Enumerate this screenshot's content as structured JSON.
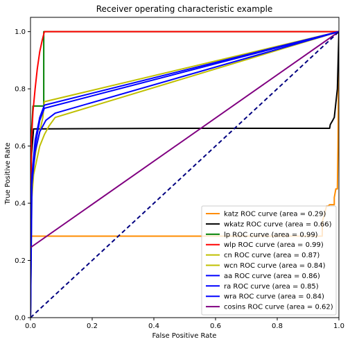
{
  "chart_data": {
    "type": "line",
    "title": "Receiver operating characteristic example",
    "xlabel": "False Positive Rate",
    "ylabel": "True Positive Rate",
    "xlim": [
      0.0,
      1.0
    ],
    "ylim": [
      0.0,
      1.05
    ],
    "xticks": [
      "0.0",
      "0.2",
      "0.4",
      "0.6",
      "0.8",
      "1.0"
    ],
    "yticks": [
      "0.0",
      "0.2",
      "0.4",
      "0.6",
      "0.8",
      "1.0"
    ],
    "grid": false,
    "legend_position": "lower-right",
    "series": [
      {
        "name": "katz ROC curve (area = 0.29)",
        "color": "#ff8c00",
        "points": [
          [
            0,
            0
          ],
          [
            0,
            0.285
          ],
          [
            0.6,
            0.285
          ],
          [
            0.946,
            0.285
          ],
          [
            0.946,
            0.335
          ],
          [
            0.95,
            0.35
          ],
          [
            0.96,
            0.39
          ],
          [
            0.965,
            0.39
          ],
          [
            0.97,
            0.395
          ],
          [
            0.985,
            0.395
          ],
          [
            0.985,
            0.42
          ],
          [
            0.99,
            0.45
          ],
          [
            0.995,
            0.45
          ],
          [
            0.997,
            0.6
          ],
          [
            1,
            1.0
          ]
        ]
      },
      {
        "name": "wkatz ROC curve (area = 0.66)",
        "color": "#000000",
        "points": [
          [
            0,
            0
          ],
          [
            0.002,
            0.55
          ],
          [
            0.01,
            0.66
          ],
          [
            0.5,
            0.662
          ],
          [
            0.97,
            0.662
          ],
          [
            0.972,
            0.675
          ],
          [
            0.98,
            0.69
          ],
          [
            0.985,
            0.7
          ],
          [
            0.99,
            0.75
          ],
          [
            0.995,
            0.8
          ],
          [
            1.0,
            1.0
          ]
        ]
      },
      {
        "name": "lp ROC curve (area = 0.99)",
        "color": "#008000",
        "points": [
          [
            0,
            0
          ],
          [
            0.003,
            0.65
          ],
          [
            0.008,
            0.74
          ],
          [
            0.043,
            0.74
          ],
          [
            0.043,
            1.0
          ],
          [
            1,
            1.0
          ]
        ]
      },
      {
        "name": "wlp ROC curve (area = 0.99)",
        "color": "#ff0000",
        "points": [
          [
            0,
            0
          ],
          [
            0.003,
            0.62
          ],
          [
            0.008,
            0.72
          ],
          [
            0.015,
            0.8
          ],
          [
            0.022,
            0.87
          ],
          [
            0.03,
            0.93
          ],
          [
            0.038,
            0.97
          ],
          [
            0.045,
            1.0
          ],
          [
            1,
            1.0
          ]
        ]
      },
      {
        "name": "cn ROC curve (area = 0.87)",
        "color": "#bfbf00",
        "points": [
          [
            0,
            0
          ],
          [
            0.005,
            0.5
          ],
          [
            0.02,
            0.6
          ],
          [
            0.04,
            0.7
          ],
          [
            0.045,
            0.755
          ],
          [
            1,
            1.0
          ]
        ]
      },
      {
        "name": "wcn ROC curve (area = 0.84)",
        "color": "#bfbf00",
        "points": [
          [
            0,
            0
          ],
          [
            0.003,
            0.4
          ],
          [
            0.01,
            0.5
          ],
          [
            0.02,
            0.55
          ],
          [
            0.03,
            0.6
          ],
          [
            0.045,
            0.64
          ],
          [
            0.06,
            0.67
          ],
          [
            0.08,
            0.7
          ],
          [
            1,
            1.0
          ]
        ]
      },
      {
        "name": "aa ROC curve (area = 0.86)",
        "color": "#0000ff",
        "points": [
          [
            0,
            0
          ],
          [
            0.005,
            0.5
          ],
          [
            0.015,
            0.62
          ],
          [
            0.03,
            0.7
          ],
          [
            0.045,
            0.743
          ],
          [
            1,
            1.0
          ]
        ]
      },
      {
        "name": "ra ROC curve (area = 0.85)",
        "color": "#0000ff",
        "points": [
          [
            0,
            0
          ],
          [
            0.004,
            0.48
          ],
          [
            0.015,
            0.6
          ],
          [
            0.03,
            0.69
          ],
          [
            0.045,
            0.732
          ],
          [
            1,
            1.0
          ]
        ]
      },
      {
        "name": "wra ROC curve (area = 0.84)",
        "color": "#0000ff",
        "points": [
          [
            0,
            0
          ],
          [
            0.003,
            0.45
          ],
          [
            0.015,
            0.58
          ],
          [
            0.03,
            0.65
          ],
          [
            0.05,
            0.69
          ],
          [
            0.08,
            0.715
          ],
          [
            1,
            1.0
          ]
        ]
      },
      {
        "name": "cosins ROC curve (area = 0.62)",
        "color": "#800080",
        "points": [
          [
            0,
            0.245
          ],
          [
            1,
            1.0
          ]
        ]
      }
    ],
    "reference_line": {
      "color": "#000080",
      "dashed": true,
      "points": [
        [
          0,
          0
        ],
        [
          1,
          1
        ]
      ]
    }
  }
}
